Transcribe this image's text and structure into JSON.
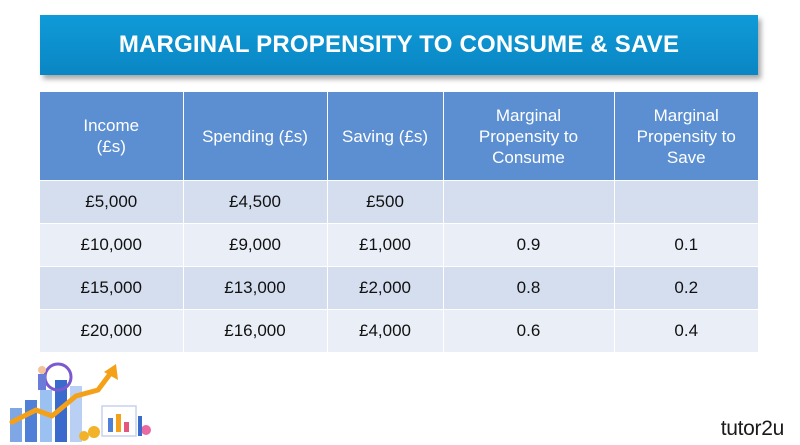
{
  "title": "MARGINAL PROPENSITY TO CONSUME & SAVE",
  "table": {
    "headers": [
      "Income\n(£s)",
      "Spending (£s)",
      "Saving (£s)",
      "Marginal\nPropensity to\nConsume",
      "Marginal\nPropensity to\nSave"
    ],
    "rows": [
      [
        "£5,000",
        "£4,500",
        "£500",
        "",
        ""
      ],
      [
        "£10,000",
        "£9,000",
        "£1,000",
        "0.9",
        "0.1"
      ],
      [
        "£15,000",
        "£13,000",
        "£2,000",
        "0.8",
        "0.2"
      ],
      [
        "£20,000",
        "£16,000",
        "£4,000",
        "0.6",
        "0.4"
      ]
    ]
  },
  "logo": "tutor2u",
  "colors": {
    "banner": "#0a8fd0",
    "header": "#5b8fd1",
    "row_dark": "#d5deef",
    "row_light": "#eaeff7"
  }
}
